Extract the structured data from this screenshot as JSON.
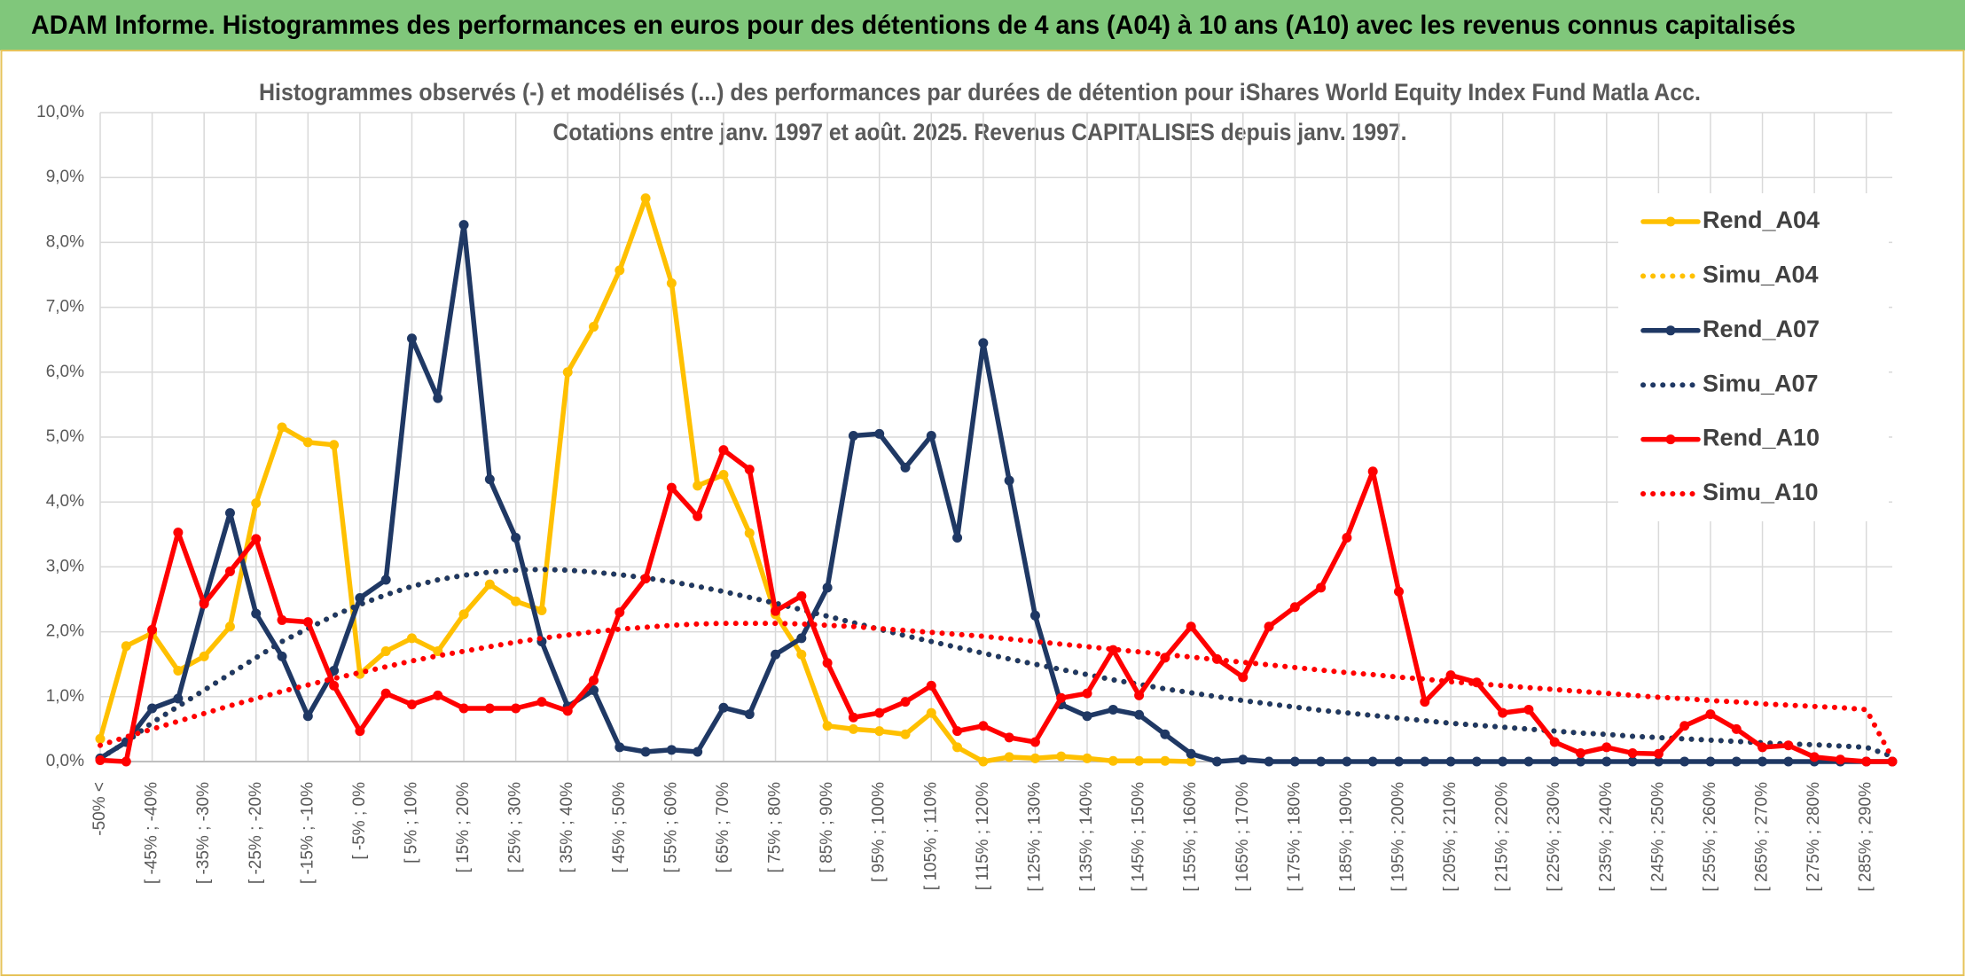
{
  "header": {
    "title": "ADAM Informe. Histogrammes des performances en euros pour des détentions de 4 ans (A04) à 10 ans (A10) avec les revenus connus capitalisés"
  },
  "chart_data": {
    "type": "line",
    "title": "Histogrammes observés (-) et modélisés (...) des performances par durées de détention pour iShares World Equity Index Fund Matla Acc.",
    "subtitle": "Cotations entre janv. 1997 et août. 2025. Revenus CAPITALISES depuis janv. 1997.",
    "categories": [
      "-50% <",
      null,
      "[ -45% ; -40%",
      null,
      "[ -35% ; -30%",
      null,
      "[ -25% ; -20%",
      null,
      "[ -15% ; -10%",
      null,
      "[ -5% ; 0%",
      null,
      "[ 5% ; 10%",
      null,
      "[ 15% ; 20%",
      null,
      "[ 25% ; 30%",
      null,
      "[ 35% ; 40%",
      null,
      "[ 45% ; 50%",
      null,
      "[ 55% ; 60%",
      null,
      "[ 65% ; 70%",
      null,
      "[ 75% ; 80%",
      null,
      "[ 85% ; 90%",
      null,
      "[ 95% ; 100%",
      null,
      "[ 105% ; 110%",
      null,
      "[ 115% ; 120%",
      null,
      "[ 125% ; 130%",
      null,
      "[ 135% ; 140%",
      null,
      "[ 145% ; 150%",
      null,
      "[ 155% ; 160%",
      null,
      "[ 165% ; 170%",
      null,
      "[ 175% ; 180%",
      null,
      "[ 185% ; 190%",
      null,
      "[ 195% ; 200%",
      null,
      "[ 205% ; 210%",
      null,
      "[ 215% ; 220%",
      null,
      "[ 225% ; 230%",
      null,
      "[ 235% ; 240%",
      null,
      "[ 245% ; 250%",
      null,
      "[ 255% ; 260%",
      null,
      "[ 265% ; 270%",
      null,
      "[ 275% ; 280%",
      null,
      "[ 285% ; 290%",
      null
    ],
    "ylim": [
      0,
      10
    ],
    "yticks": [
      {
        "value": 0,
        "label": "0,0%"
      },
      {
        "value": 1,
        "label": "1,0%"
      },
      {
        "value": 2,
        "label": "2,0%"
      },
      {
        "value": 3,
        "label": "3,0%"
      },
      {
        "value": 4,
        "label": "4,0%"
      },
      {
        "value": 5,
        "label": "5,0%"
      },
      {
        "value": 6,
        "label": "6,0%"
      },
      {
        "value": 7,
        "label": "7,0%"
      },
      {
        "value": 8,
        "label": "8,0%"
      },
      {
        "value": 9,
        "label": "9,0%"
      },
      {
        "value": 10,
        "label": "10,0%"
      }
    ],
    "grid": true,
    "legend": "right",
    "series": [
      {
        "name": "Rend_A04",
        "color": "#ffc000",
        "style": "solid",
        "markers": true,
        "values": [
          0.35,
          1.78,
          1.98,
          1.4,
          1.62,
          2.08,
          3.98,
          5.15,
          4.92,
          4.88,
          1.35,
          1.7,
          1.9,
          1.7,
          2.27,
          2.73,
          2.47,
          2.33,
          6.0,
          6.7,
          7.57,
          8.68,
          7.37,
          4.25,
          4.42,
          3.52,
          2.27,
          1.65,
          0.55,
          0.5,
          0.47,
          0.42,
          0.75,
          0.22,
          0.0,
          0.07,
          0.05,
          0.08,
          0.05,
          0.01,
          0.01,
          0.01,
          0.0,
          null,
          null,
          null,
          null,
          null,
          null,
          null,
          null,
          null,
          null,
          null,
          null,
          null,
          null,
          null,
          null,
          null,
          null,
          null,
          null,
          null,
          null,
          null,
          null,
          null,
          null,
          null
        ]
      },
      {
        "name": "Simu_A04",
        "color": "#ffc000",
        "style": "dotted",
        "markers": false,
        "values": [
          0.05,
          0.3,
          0.6,
          0.85,
          1.1,
          1.35,
          1.6,
          1.85,
          2.05,
          2.25,
          2.42,
          2.57,
          2.7,
          2.8,
          2.87,
          2.92,
          2.95,
          2.96,
          2.95,
          2.92,
          2.88,
          2.83,
          2.77,
          2.7,
          2.62,
          2.53,
          2.44,
          2.34,
          2.24,
          2.14,
          2.04,
          1.94,
          1.85,
          1.76,
          1.67,
          1.58,
          1.5,
          1.42,
          1.34,
          1.26,
          1.19,
          1.12,
          1.06,
          1.0,
          0.94,
          0.89,
          0.84,
          0.79,
          0.75,
          0.71,
          0.67,
          0.63,
          0.59,
          0.56,
          0.53,
          0.5,
          0.47,
          0.44,
          0.42,
          0.39,
          0.37,
          0.35,
          0.33,
          0.31,
          0.29,
          0.27,
          0.26,
          0.24,
          0.22,
          0.08
        ]
      },
      {
        "name": "Rend_A07",
        "color": "#1f3864",
        "style": "solid",
        "markers": true,
        "values": [
          0.05,
          0.3,
          0.82,
          0.97,
          2.45,
          3.83,
          2.28,
          1.62,
          0.7,
          1.4,
          2.52,
          2.8,
          6.52,
          5.6,
          8.27,
          4.35,
          3.45,
          1.85,
          0.85,
          1.1,
          0.22,
          0.15,
          0.18,
          0.15,
          0.83,
          0.73,
          1.65,
          1.9,
          2.68,
          5.02,
          5.05,
          4.53,
          5.02,
          3.45,
          6.45,
          4.33,
          2.25,
          0.88,
          0.7,
          0.8,
          0.72,
          0.42,
          0.12,
          0.0,
          0.03,
          0,
          0,
          0,
          0,
          0,
          0,
          0,
          0,
          0,
          0,
          0,
          0,
          0,
          0,
          0,
          0,
          0,
          0,
          0,
          0,
          0,
          0,
          0,
          0,
          0
        ]
      },
      {
        "name": "Simu_A07",
        "color": "#1f3864",
        "style": "dotted",
        "markers": false,
        "values": [
          0.05,
          0.3,
          0.6,
          0.85,
          1.1,
          1.35,
          1.6,
          1.85,
          2.05,
          2.25,
          2.42,
          2.57,
          2.7,
          2.8,
          2.87,
          2.92,
          2.95,
          2.96,
          2.95,
          2.92,
          2.88,
          2.83,
          2.77,
          2.7,
          2.62,
          2.53,
          2.44,
          2.34,
          2.24,
          2.14,
          2.04,
          1.94,
          1.85,
          1.76,
          1.67,
          1.58,
          1.5,
          1.42,
          1.34,
          1.26,
          1.19,
          1.12,
          1.06,
          1.0,
          0.94,
          0.89,
          0.84,
          0.79,
          0.75,
          0.71,
          0.67,
          0.63,
          0.59,
          0.56,
          0.53,
          0.5,
          0.47,
          0.44,
          0.42,
          0.39,
          0.37,
          0.35,
          0.33,
          0.31,
          0.29,
          0.27,
          0.26,
          0.24,
          0.22,
          0.08
        ]
      },
      {
        "name": "Rend_A10",
        "color": "#ff0000",
        "style": "solid",
        "markers": true,
        "values": [
          0.02,
          0.0,
          2.03,
          3.53,
          2.43,
          2.93,
          3.43,
          2.18,
          2.15,
          1.17,
          0.47,
          1.05,
          0.88,
          1.02,
          0.82,
          0.82,
          0.82,
          0.92,
          0.78,
          1.25,
          2.3,
          2.82,
          4.22,
          3.78,
          4.8,
          4.5,
          2.32,
          2.55,
          1.52,
          0.68,
          0.75,
          0.92,
          1.17,
          0.47,
          0.55,
          0.37,
          0.3,
          0.98,
          1.05,
          1.72,
          1.02,
          1.6,
          2.08,
          1.58,
          1.3,
          2.08,
          2.38,
          2.68,
          3.45,
          4.47,
          2.62,
          0.92,
          1.33,
          1.22,
          0.75,
          0.8,
          0.3,
          0.13,
          0.22,
          0.13,
          0.12,
          0.55,
          0.73,
          0.5,
          0.22,
          0.25,
          0.07,
          0.03,
          0.0,
          0.0
        ]
      },
      {
        "name": "Simu_A10",
        "color": "#ff0000",
        "style": "dotted",
        "markers": false,
        "values": [
          0.25,
          0.38,
          0.5,
          0.62,
          0.74,
          0.86,
          0.97,
          1.08,
          1.18,
          1.28,
          1.37,
          1.46,
          1.55,
          1.63,
          1.7,
          1.77,
          1.84,
          1.9,
          1.95,
          2.0,
          2.04,
          2.07,
          2.1,
          2.12,
          2.13,
          2.13,
          2.13,
          2.12,
          2.1,
          2.08,
          2.05,
          2.02,
          1.99,
          1.96,
          1.93,
          1.89,
          1.85,
          1.81,
          1.77,
          1.73,
          1.69,
          1.65,
          1.61,
          1.57,
          1.53,
          1.49,
          1.45,
          1.41,
          1.37,
          1.34,
          1.3,
          1.27,
          1.23,
          1.2,
          1.17,
          1.14,
          1.11,
          1.08,
          1.05,
          1.02,
          0.99,
          0.97,
          0.94,
          0.92,
          0.89,
          0.87,
          0.85,
          0.83,
          0.8,
          0.05
        ]
      }
    ]
  }
}
